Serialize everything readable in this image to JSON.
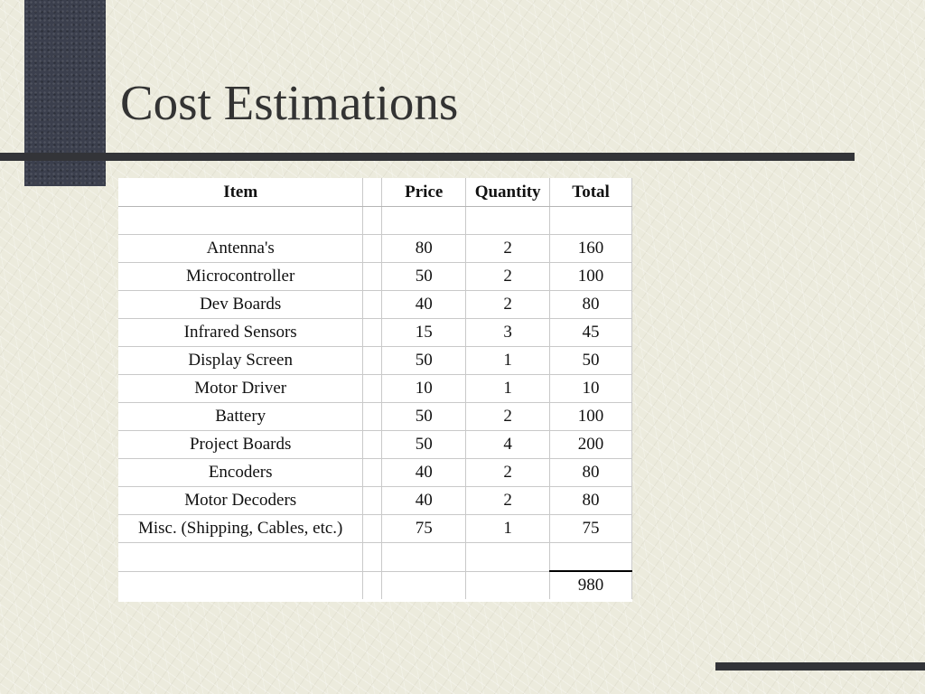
{
  "slide": {
    "title": "Cost Estimations"
  },
  "table": {
    "headers": {
      "item": "Item",
      "gap": "",
      "price": "Price",
      "quantity": "Quantity",
      "total": "Total"
    },
    "rows": [
      {
        "item": "",
        "price": "",
        "quantity": "",
        "total": ""
      },
      {
        "item": "Antenna's",
        "price": "80",
        "quantity": "2",
        "total": "160"
      },
      {
        "item": "Microcontroller",
        "price": "50",
        "quantity": "2",
        "total": "100"
      },
      {
        "item": "Dev Boards",
        "price": "40",
        "quantity": "2",
        "total": "80"
      },
      {
        "item": "Infrared Sensors",
        "price": "15",
        "quantity": "3",
        "total": "45"
      },
      {
        "item": "Display Screen",
        "price": "50",
        "quantity": "1",
        "total": "50"
      },
      {
        "item": "Motor Driver",
        "price": "10",
        "quantity": "1",
        "total": "10"
      },
      {
        "item": "Battery",
        "price": "50",
        "quantity": "2",
        "total": "100"
      },
      {
        "item": "Project Boards",
        "price": "50",
        "quantity": "4",
        "total": "200"
      },
      {
        "item": "Encoders",
        "price": "40",
        "quantity": "2",
        "total": "80"
      },
      {
        "item": "Motor Decoders",
        "price": "40",
        "quantity": "2",
        "total": "80"
      },
      {
        "item": "Misc. (Shipping, Cables, etc.)",
        "price": "75",
        "quantity": "1",
        "total": "75"
      },
      {
        "item": "",
        "price": "",
        "quantity": "",
        "total": ""
      }
    ],
    "grand_total": "980"
  },
  "colors": {
    "background": "#ecebdd",
    "accent_block": "#3b3f4d",
    "rule": "#333438",
    "title_text": "#333333"
  }
}
